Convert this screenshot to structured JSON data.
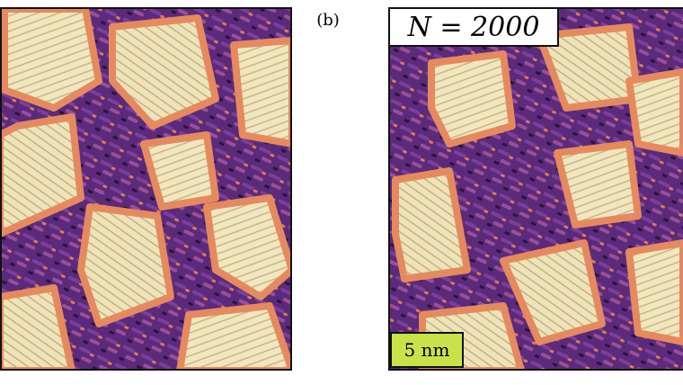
{
  "figure": {
    "panel_label": "(b)",
    "panels": [
      {
        "label": null,
        "scale_bar": null
      },
      {
        "label": "N = 2000",
        "scale_bar": "5 nm"
      }
    ]
  }
}
